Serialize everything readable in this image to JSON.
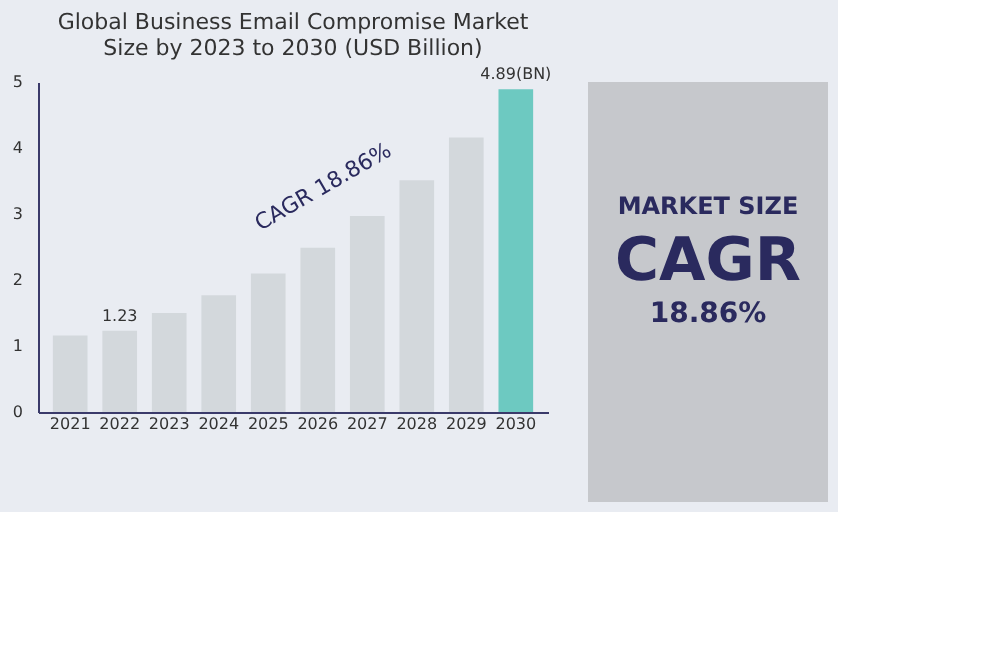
{
  "chart_data": {
    "type": "bar",
    "title": [
      "Global Business Email Compromise Market",
      "Size by 2023 to 2030 (USD Billion)"
    ],
    "categories": [
      "2021",
      "2022",
      "2023",
      "2024",
      "2025",
      "2026",
      "2027",
      "2028",
      "2029",
      "2030"
    ],
    "values": [
      1.16,
      1.23,
      1.5,
      1.77,
      2.1,
      2.49,
      2.97,
      3.51,
      4.16,
      4.89
    ],
    "colors": [
      "#d3d8dc",
      "#d3d8dc",
      "#d3d8dc",
      "#d3d8dc",
      "#d3d8dc",
      "#d3d8dc",
      "#d3d8dc",
      "#d3d8dc",
      "#d3d8dc",
      "#6dc9c1"
    ],
    "value_labels": [
      null,
      "1.23",
      null,
      null,
      null,
      null,
      null,
      null,
      null,
      "4.89(BN)"
    ],
    "ylim": [
      0,
      5
    ],
    "yticks": [
      0,
      1,
      2,
      3,
      4,
      5
    ],
    "grid": false,
    "annotations": [
      "CAGR 18.86%",
      "MARKET SIZE",
      "CAGR",
      "18.86%"
    ]
  }
}
